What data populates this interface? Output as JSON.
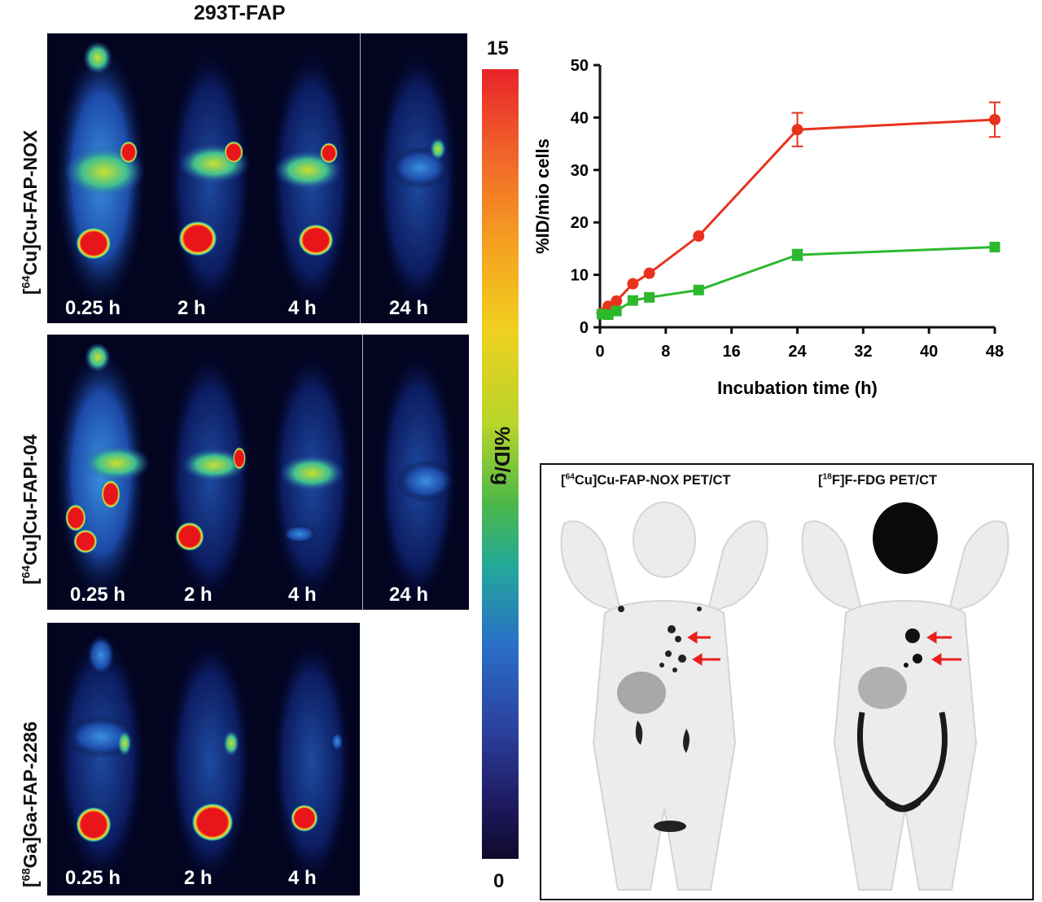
{
  "figure": {
    "title": "293T-FAP",
    "rows": [
      {
        "tracer_label_prefix": "[",
        "isotope": "64",
        "tracer_label_suffix": "Cu]Cu-FAP-NOX",
        "times": [
          "0.25 h",
          "2 h",
          "4 h",
          "24 h"
        ]
      },
      {
        "tracer_label_prefix": "[",
        "isotope": "64",
        "tracer_label_suffix": "Cu]Cu-FAPI-04",
        "times": [
          "0.25 h",
          "2 h",
          "4 h",
          "24 h"
        ]
      },
      {
        "tracer_label_prefix": "[",
        "isotope": "68",
        "tracer_label_suffix": "Ga]Ga-FAP-2286",
        "times": [
          "0.25 h",
          "2 h",
          "4 h"
        ]
      }
    ],
    "colorbar": {
      "max": "15",
      "min": "0",
      "label": "%ID/g"
    },
    "pet_panel": {
      "left_title_prefix": "[",
      "left_isotope": "64",
      "left_title_suffix": "Cu]Cu-FAP-NOX PET/CT",
      "right_title_prefix": "[",
      "right_isotope": "18",
      "right_title_suffix": "F]F-FDG PET/CT"
    }
  },
  "chart_data": {
    "type": "line",
    "xlabel": "Incubation time (h)",
    "ylabel": "%ID/mio cells",
    "xlim": [
      0,
      48
    ],
    "ylim": [
      0,
      50
    ],
    "xticks": [
      0,
      8,
      16,
      24,
      32,
      40,
      48
    ],
    "yticks": [
      0,
      10,
      20,
      30,
      40,
      50
    ],
    "grid": false,
    "series": [
      {
        "color": "#e8321e",
        "marker": "circle",
        "x": [
          0.25,
          1,
          2,
          4,
          6,
          12,
          24,
          48
        ],
        "y": [
          2.7,
          4.0,
          5.0,
          8.3,
          10.3,
          17.4,
          37.7,
          39.6
        ],
        "err": [
          0,
          0,
          0,
          0,
          0,
          0,
          3.2,
          3.3
        ]
      },
      {
        "color": "#2db82d",
        "marker": "square",
        "x": [
          0.25,
          1,
          2,
          4,
          6,
          12,
          24,
          48
        ],
        "y": [
          2.5,
          2.4,
          3.1,
          5.1,
          5.7,
          7.1,
          13.8,
          15.3
        ],
        "err": [
          0,
          0,
          0,
          0,
          0,
          0,
          1.0,
          0
        ]
      }
    ]
  }
}
